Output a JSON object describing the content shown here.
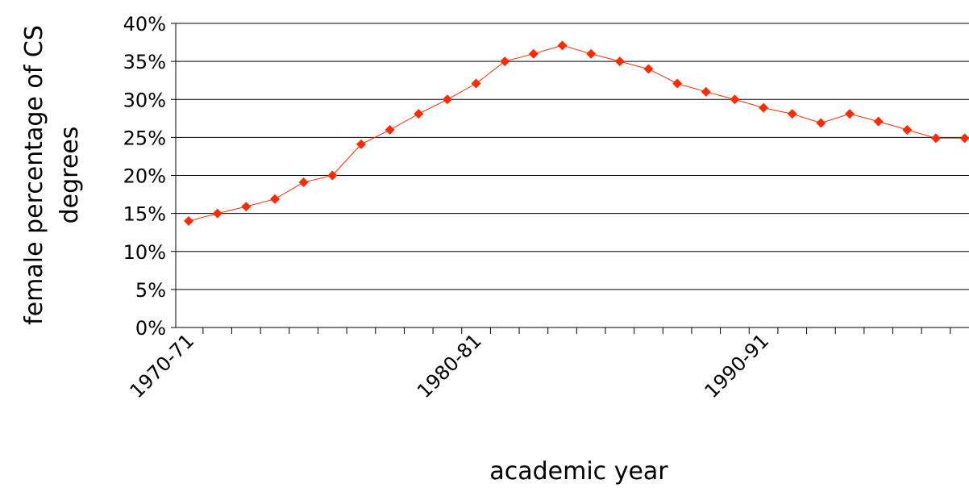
{
  "chart_data": {
    "type": "line",
    "title": "",
    "xlabel": "academic year",
    "ylabel": "female percentage of CS degrees",
    "ylabel_lines": [
      "female percentage of CS",
      "degrees"
    ],
    "x_tick_labels": [
      "1970-71",
      "1980-81",
      "1990-91"
    ],
    "y_tick_labels": [
      "0%",
      "5%",
      "10%",
      "15%",
      "20%",
      "25%",
      "30%",
      "35%",
      "40%"
    ],
    "ylim": [
      0,
      40
    ],
    "grid": true,
    "legend": "none",
    "series": [
      {
        "color": "#FF2A00",
        "x": [
          "1970-71",
          "1971-72",
          "1972-73",
          "1973-74",
          "1974-75",
          "1975-76",
          "1976-77",
          "1977-78",
          "1978-79",
          "1979-80",
          "1980-81",
          "1981-82",
          "1982-83",
          "1983-84",
          "1984-85",
          "1985-86",
          "1986-87",
          "1987-88",
          "1988-89",
          "1989-90",
          "1990-91",
          "1991-92",
          "1992-93",
          "1993-94",
          "1994-95",
          "1995-96",
          "1996-97",
          "1997-98"
        ],
        "values": [
          14,
          15,
          15.9,
          16.9,
          19.1,
          20,
          24.1,
          26,
          28.1,
          30,
          32.1,
          35,
          36,
          37.1,
          36,
          35,
          34,
          32.1,
          31,
          30,
          28.9,
          28.1,
          26.9,
          28.1,
          27.1,
          26,
          24.9,
          24.9
        ]
      }
    ]
  }
}
